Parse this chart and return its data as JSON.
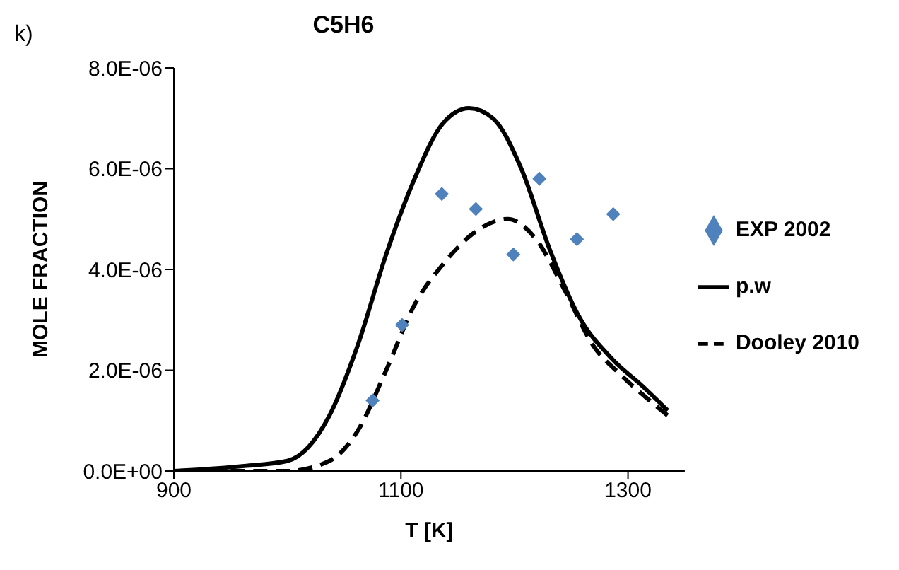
{
  "chart_data": {
    "type": "line",
    "title": "C5H6",
    "xlabel": "T [K]",
    "ylabel": "MOLE FRACTION",
    "annotations": [
      "k)"
    ],
    "xlim": [
      900,
      1350
    ],
    "xticks": [
      900,
      1100,
      1300
    ],
    "ylim": [
      0,
      8e-06
    ],
    "yticks": [
      {
        "value": 0,
        "label": "0.0E+00"
      },
      {
        "value": 2e-06,
        "label": "2.0E-06"
      },
      {
        "value": 4e-06,
        "label": "4.0E-06"
      },
      {
        "value": 6e-06,
        "label": "6.0E-06"
      },
      {
        "value": 8e-06,
        "label": "8.0E-06"
      }
    ],
    "grid": false,
    "legend": "right",
    "series": [
      {
        "name": "EXP 2002",
        "type": "scatter",
        "marker": "diamond",
        "color": "#4f81bd",
        "x": [
          1075,
          1101,
          1136,
          1166,
          1199,
          1222,
          1255,
          1287
        ],
        "values": [
          1.4e-06,
          2.9e-06,
          5.5e-06,
          5.2e-06,
          4.3e-06,
          5.8e-06,
          4.6e-06,
          5.1e-06
        ]
      },
      {
        "name": "p.w",
        "marker": "none",
        "line_style": "solid",
        "color": "#000000",
        "x": [
          900,
          962,
          1000,
          1037,
          1062,
          1087,
          1112,
          1137,
          1160,
          1181,
          1206,
          1231,
          1256,
          1287,
          1312,
          1335
        ],
        "values": [
          0,
          1e-07,
          2e-07,
          1.1e-06,
          2.5e-06,
          4.3e-06,
          5.8e-06,
          6.9e-06,
          7.2e-06,
          7e-06,
          6e-06,
          4.4e-06,
          3.1e-06,
          2.2e-06,
          1.7e-06,
          1.2e-06
        ]
      },
      {
        "name": "Dooley 2010",
        "marker": "none",
        "line_style": "dashed",
        "color": "#000000",
        "x": [
          950,
          1000,
          1037,
          1062,
          1087,
          1112,
          1137,
          1169,
          1194,
          1219,
          1244,
          1269,
          1294,
          1319,
          1335
        ],
        "values": [
          0,
          0,
          2e-07,
          8e-07,
          2e-06,
          3.3e-06,
          4.1e-06,
          4.8e-06,
          5e-06,
          4.6e-06,
          3.6e-06,
          2.5e-06,
          1.9e-06,
          1.4e-06,
          1.1e-06
        ]
      }
    ]
  }
}
